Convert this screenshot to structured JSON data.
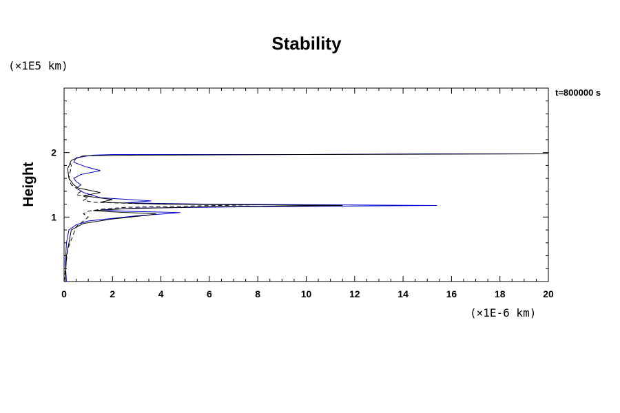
{
  "chart_data": {
    "type": "line",
    "title": "Stability",
    "xlabel": "",
    "ylabel": "Height",
    "x_unit": "(×1E-6 km)",
    "y_unit": "(×1E5 km)",
    "time_label": "t=800000 s",
    "xlim": [
      0,
      20
    ],
    "ylim": [
      0,
      3
    ],
    "x_ticks": [
      0,
      2,
      4,
      6,
      8,
      10,
      12,
      14,
      16,
      18,
      20
    ],
    "x_tick_labels": [
      "0",
      "2",
      "4",
      "6",
      "8",
      "10",
      "12",
      "14",
      "16",
      "18",
      "20"
    ],
    "y_ticks": [
      1,
      2
    ],
    "y_tick_labels": [
      "1",
      "2"
    ],
    "grid": false,
    "series": [
      {
        "color": "#0000cc",
        "style": "solid",
        "points": [
          [
            0.1,
            0.0
          ],
          [
            0.05,
            0.3
          ],
          [
            0.1,
            0.6
          ],
          [
            0.2,
            0.8
          ],
          [
            0.5,
            0.88
          ],
          [
            1.0,
            0.94
          ],
          [
            2.0,
            0.98
          ],
          [
            3.0,
            1.02
          ],
          [
            4.5,
            1.06
          ],
          [
            4.8,
            1.07
          ],
          [
            2.5,
            1.09
          ],
          [
            1.5,
            1.11
          ],
          [
            3.0,
            1.14
          ],
          [
            8.0,
            1.16
          ],
          [
            15.4,
            1.18
          ],
          [
            6.0,
            1.2
          ],
          [
            2.5,
            1.22
          ],
          [
            3.6,
            1.25
          ],
          [
            1.5,
            1.3
          ],
          [
            0.8,
            1.38
          ],
          [
            0.5,
            1.45
          ],
          [
            0.7,
            1.5
          ],
          [
            0.5,
            1.55
          ],
          [
            0.4,
            1.6
          ],
          [
            0.7,
            1.66
          ],
          [
            1.5,
            1.72
          ],
          [
            0.9,
            1.78
          ],
          [
            0.4,
            1.85
          ],
          [
            0.5,
            1.92
          ],
          [
            1.2,
            1.96
          ],
          [
            2.0,
            1.97
          ],
          [
            5.0,
            1.97
          ],
          [
            10.0,
            1.97
          ],
          [
            15.0,
            1.98
          ],
          [
            20.0,
            1.98
          ]
        ]
      },
      {
        "color": "#000000",
        "style": "solid",
        "points": [
          [
            0.05,
            0.0
          ],
          [
            0.1,
            0.4
          ],
          [
            0.3,
            0.8
          ],
          [
            0.8,
            0.9
          ],
          [
            2.0,
            0.97
          ],
          [
            3.5,
            1.03
          ],
          [
            3.8,
            1.05
          ],
          [
            2.0,
            1.08
          ],
          [
            1.2,
            1.1
          ],
          [
            2.5,
            1.13
          ],
          [
            6.0,
            1.16
          ],
          [
            11.5,
            1.18
          ],
          [
            4.0,
            1.2
          ],
          [
            1.5,
            1.23
          ],
          [
            2.0,
            1.27
          ],
          [
            0.8,
            1.33
          ],
          [
            1.5,
            1.38
          ],
          [
            0.6,
            1.45
          ],
          [
            0.4,
            1.5
          ],
          [
            0.2,
            1.6
          ],
          [
            0.15,
            1.75
          ],
          [
            0.3,
            1.88
          ],
          [
            0.8,
            1.95
          ],
          [
            3.0,
            1.96
          ],
          [
            10.0,
            1.97
          ],
          [
            20.0,
            1.98
          ]
        ]
      },
      {
        "color": "#000000",
        "style": "dashed",
        "points": [
          [
            0.0,
            0.0
          ],
          [
            0.15,
            0.5
          ],
          [
            0.5,
            0.85
          ],
          [
            1.0,
            1.0
          ],
          [
            0.8,
            1.05
          ],
          [
            1.0,
            1.09
          ],
          [
            1.5,
            1.12
          ],
          [
            2.5,
            1.15
          ],
          [
            5.0,
            1.17
          ],
          [
            8.0,
            1.19
          ],
          [
            3.0,
            1.21
          ],
          [
            1.2,
            1.23
          ],
          [
            0.8,
            1.26
          ],
          [
            1.0,
            1.3
          ],
          [
            0.5,
            1.35
          ],
          [
            0.7,
            1.4
          ],
          [
            0.3,
            1.5
          ],
          [
            0.2,
            1.6
          ],
          [
            0.25,
            1.7
          ],
          [
            0.3,
            1.8
          ],
          [
            0.2,
            1.88
          ]
        ]
      }
    ]
  }
}
